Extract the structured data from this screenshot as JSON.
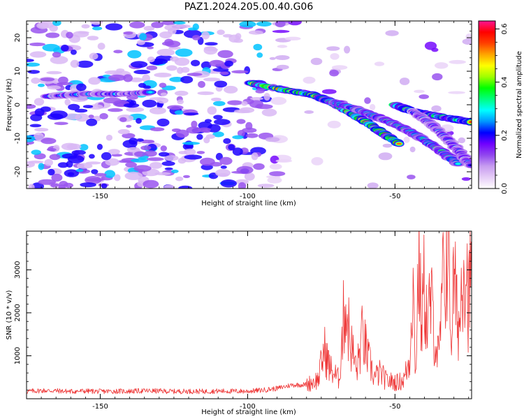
{
  "title": "PAZ1.2024.205.00.40.G06",
  "chart_data": [
    {
      "type": "heatmap",
      "xlabel": "Height of straight line (km)",
      "ylabel": "Frequency (Hz)",
      "xlim": [
        -175,
        -24
      ],
      "ylim": [
        -25,
        25
      ],
      "x_ticks": [
        -150,
        -100,
        -50
      ],
      "y_ticks": [
        -20,
        -10,
        0,
        10,
        20
      ],
      "x_tick_labels": [
        "-150",
        "-100",
        "-50"
      ],
      "y_tick_labels": [
        "-20",
        "-10",
        "0",
        "10",
        "20"
      ],
      "colorbar": {
        "label": "Normalized spectral amplitude",
        "range": [
          0,
          0.63
        ],
        "ticks": [
          0.0,
          0.2,
          0.4,
          0.6
        ],
        "tick_labels": [
          "0.0",
          "0.2",
          "0.4",
          "0.6"
        ],
        "colormap": [
          "#ffffff",
          "#e6cdf7",
          "#c79df0",
          "#9147ef",
          "#7000ff",
          "#0000ff",
          "#0096ff",
          "#00ffff",
          "#00ff80",
          "#00ff00",
          "#a0ff00",
          "#ffff00",
          "#ffa500",
          "#ff4000",
          "#ff0000",
          "#ff1493"
        ]
      },
      "ridges": [
        {
          "x": [
            -99,
            -88,
            -78,
            -72,
            -66,
            -60,
            -54,
            -48
          ],
          "y": [
            6.5,
            4.5,
            3.0,
            1.0,
            -2.0,
            -5.0,
            -8.5,
            -12.0
          ],
          "peak": 0.63
        },
        {
          "x": [
            -72,
            -64,
            -58,
            -52,
            -46,
            -40,
            -34,
            -28
          ],
          "y": [
            1.0,
            -1.0,
            -3.0,
            -5.0,
            -7.5,
            -10.5,
            -14.0,
            -18.0
          ],
          "peak": 0.45
        },
        {
          "x": [
            -50,
            -44,
            -38,
            -32,
            -27,
            -24
          ],
          "y": [
            0.0,
            -2.0,
            -3.0,
            -4.0,
            -4.7,
            -5.2
          ],
          "peak": 0.6
        },
        {
          "x": [
            -44,
            -38,
            -33,
            -28,
            -24
          ],
          "y": [
            -2.0,
            -5.5,
            -9.5,
            -14.0,
            -18.5
          ],
          "peak": 0.3
        },
        {
          "x": [
            -168,
            -155,
            -142,
            -132
          ],
          "y": [
            2.5,
            3.2,
            3.2,
            3.8
          ],
          "peak": 0.3
        }
      ]
    },
    {
      "type": "line",
      "xlabel": "Height of straight line (km)",
      "ylabel": "SNR (10 * v/v)",
      "xlim": [
        -175,
        -24
      ],
      "ylim": [
        0,
        3900
      ],
      "x_ticks": [
        -150,
        -100,
        -50
      ],
      "y_ticks": [
        1000,
        2000,
        3000
      ],
      "x_tick_labels": [
        "-150",
        "-100",
        "-50"
      ],
      "y_tick_labels": [
        "1000",
        "2000",
        "3000"
      ],
      "color": "#ee3333",
      "x": [
        -175,
        -170,
        -165,
        -160,
        -155,
        -150,
        -145,
        -140,
        -135,
        -130,
        -125,
        -120,
        -115,
        -110,
        -105,
        -100,
        -95,
        -90,
        -85,
        -80,
        -76,
        -74,
        -72,
        -69,
        -67,
        -65,
        -63,
        -61,
        -59,
        -57,
        -55,
        -53,
        -51,
        -49,
        -47,
        -45,
        -44,
        -43,
        -42,
        -41,
        -40,
        -39,
        -38,
        -37,
        -36,
        -35,
        -34,
        -33,
        -32,
        -31,
        -30,
        -29,
        -28,
        -27,
        -26,
        -25,
        -24
      ],
      "y": [
        170,
        190,
        185,
        170,
        180,
        170,
        175,
        175,
        185,
        180,
        170,
        175,
        170,
        180,
        175,
        175,
        200,
        240,
        320,
        330,
        450,
        1150,
        700,
        450,
        2250,
        1300,
        650,
        1500,
        900,
        500,
        600,
        420,
        400,
        380,
        450,
        900,
        2900,
        600,
        3300,
        1700,
        2700,
        1600,
        2300,
        1800,
        1200,
        900,
        2500,
        2800,
        3900,
        1400,
        2800,
        2000,
        1700,
        3400,
        3250,
        2200,
        3100
      ]
    }
  ]
}
